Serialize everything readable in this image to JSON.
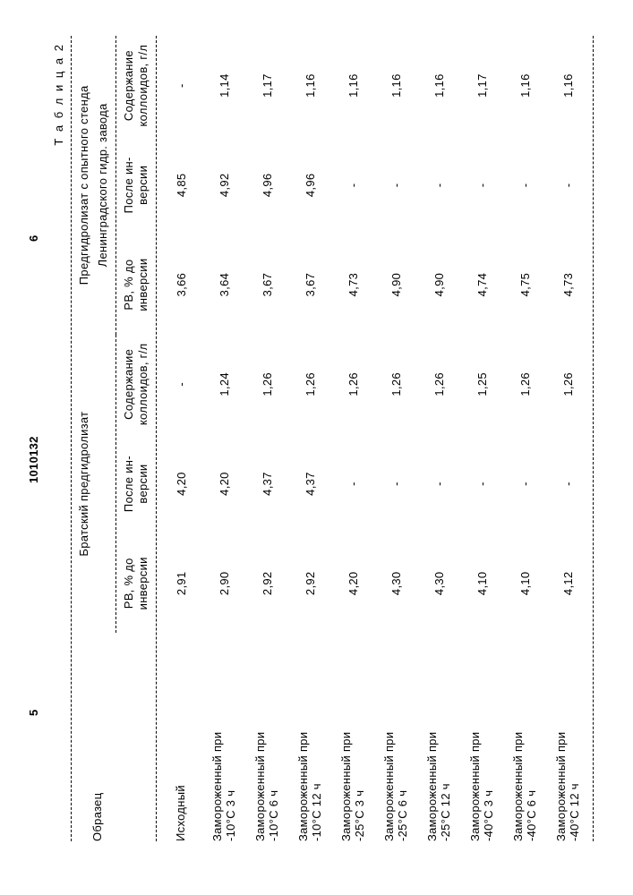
{
  "page_left_num": "5",
  "page_center_num": "1010132",
  "page_right_num": "6",
  "table_label": "Т а б л и ц а  2",
  "headers": {
    "sample": "Образец",
    "group1": "Братский предгидролизат",
    "group2_a": "Предгидролизат с опытного стенда",
    "group2_b": "Ленинградского гидр. завода",
    "rv_before": "РВ, % до инверсии",
    "after_inv": "После ин- версии",
    "colloids": "Содержание коллоидов, г/л"
  },
  "rows": [
    {
      "sample": "Исходный",
      "a1": "2,91",
      "a2": "4,20",
      "a3": "-",
      "b1": "3,66",
      "b2": "4,85",
      "b3": "-"
    },
    {
      "sample": "Замороженный при\n-10°С 3 ч",
      "a1": "2,90",
      "a2": "4,20",
      "a3": "1,24",
      "b1": "3,64",
      "b2": "4,92",
      "b3": "1,14"
    },
    {
      "sample": "Замороженный при\n-10°С 6 ч",
      "a1": "2,92",
      "a2": "4,37",
      "a3": "1,26",
      "b1": "3,67",
      "b2": "4,96",
      "b3": "1,17"
    },
    {
      "sample": "Замороженный при\n-10°С 12 ч",
      "a1": "2,92",
      "a2": "4,37",
      "a3": "1,26",
      "b1": "3,67",
      "b2": "4,96",
      "b3": "1,16"
    },
    {
      "sample": "Замороженный при\n-25°С 3 ч",
      "a1": "4,20",
      "a2": "-",
      "a3": "1,26",
      "b1": "4,73",
      "b2": "-",
      "b3": "1,16"
    },
    {
      "sample": "Замороженный при\n-25°С 6 ч",
      "a1": "4,30",
      "a2": "-",
      "a3": "1,26",
      "b1": "4,90",
      "b2": "-",
      "b3": "1,16"
    },
    {
      "sample": "Замороженный при\n-25°С 12 ч",
      "a1": "4,30",
      "a2": "-",
      "a3": "1,26",
      "b1": "4,90",
      "b2": "-",
      "b3": "1,16"
    },
    {
      "sample": "Замороженный при\n-40°С 3 ч",
      "a1": "4,10",
      "a2": "-",
      "a3": "1,25",
      "b1": "4,74",
      "b2": "-",
      "b3": "1,17"
    },
    {
      "sample": "Замороженный при\n-40°С 6 ч",
      "a1": "4,10",
      "a2": "-",
      "a3": "1,26",
      "b1": "4,75",
      "b2": "-",
      "b3": "1,16"
    },
    {
      "sample": "Замороженный при\n-40°С 12 ч",
      "a1": "4,12",
      "a2": "-",
      "a3": "1,26",
      "b1": "4,73",
      "b2": "-",
      "b3": "1,16"
    }
  ]
}
